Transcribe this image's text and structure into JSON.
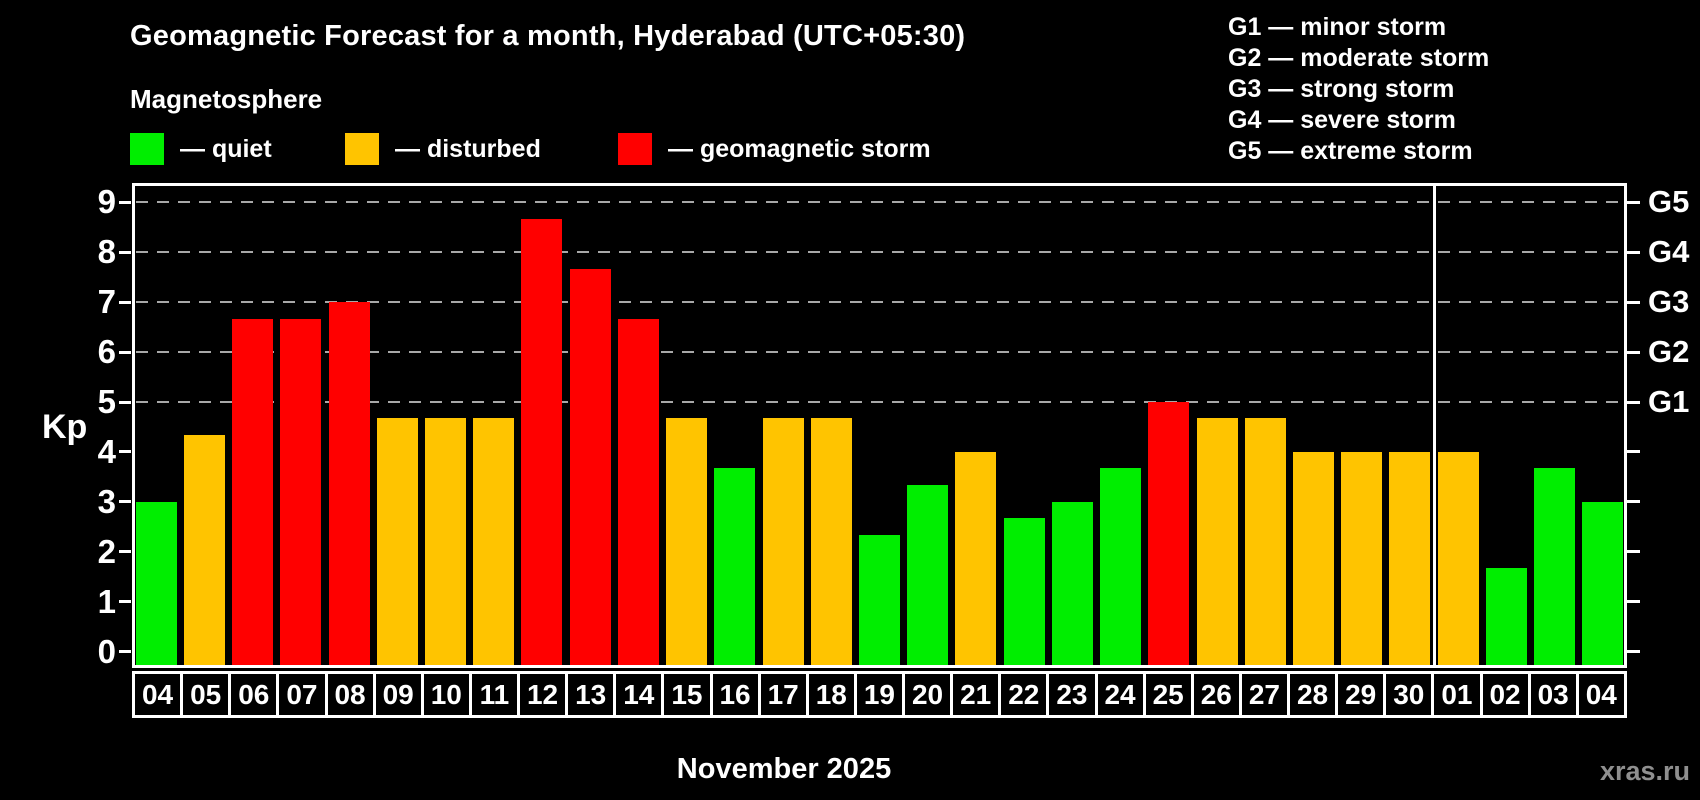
{
  "title": "Geomagnetic Forecast for a month, Hyderabad (UTC+05:30)",
  "subtitle": "Magnetosphere",
  "legend": {
    "quiet": {
      "label": "— quiet",
      "color": "#00ee00"
    },
    "disturbed": {
      "label": "— disturbed",
      "color": "#ffc400"
    },
    "storm": {
      "label": "— geomagnetic storm",
      "color": "#ff0000"
    }
  },
  "storm_scale_legend": [
    "G1 — minor storm",
    "G2 — moderate storm",
    "G3 — strong storm",
    "G4 — severe storm",
    "G5 — extreme storm"
  ],
  "y_axis": {
    "label": "Kp",
    "ticks": [
      0,
      1,
      2,
      3,
      4,
      5,
      6,
      7,
      8,
      9
    ],
    "right_axis_labels": [
      {
        "kp": 5,
        "text": "G1"
      },
      {
        "kp": 6,
        "text": "G2"
      },
      {
        "kp": 7,
        "text": "G3"
      },
      {
        "kp": 8,
        "text": "G4"
      },
      {
        "kp": 9,
        "text": "G5"
      }
    ]
  },
  "x_axis": {
    "month_label": "November 2025"
  },
  "watermark": "xras.ru",
  "chart_data": {
    "type": "bar",
    "title": "Geomagnetic Forecast for a month, Hyderabad (UTC+05:30)",
    "ylabel": "Kp",
    "ylim": [
      0,
      9.33
    ],
    "gridlines_at": [
      5,
      6,
      7,
      8,
      9
    ],
    "month_boundary_after_category_index": 26,
    "categories": [
      "04",
      "05",
      "06",
      "07",
      "08",
      "09",
      "10",
      "11",
      "12",
      "13",
      "14",
      "15",
      "16",
      "17",
      "18",
      "19",
      "20",
      "21",
      "22",
      "23",
      "24",
      "25",
      "26",
      "27",
      "28",
      "29",
      "30",
      "01",
      "02",
      "03",
      "04"
    ],
    "values": [
      3,
      4.33,
      6.67,
      6.67,
      7,
      4.67,
      4.67,
      4.67,
      8.67,
      7.67,
      6.67,
      4.67,
      3.67,
      4.67,
      4.67,
      2.33,
      3.33,
      4,
      2.67,
      3,
      3.67,
      5,
      4.67,
      4.67,
      4,
      4,
      4,
      4,
      1.67,
      3.67,
      3
    ],
    "levels": [
      "quiet",
      "disturbed",
      "storm",
      "storm",
      "storm",
      "disturbed",
      "disturbed",
      "disturbed",
      "storm",
      "storm",
      "storm",
      "disturbed",
      "quiet",
      "disturbed",
      "disturbed",
      "quiet",
      "quiet",
      "disturbed",
      "quiet",
      "quiet",
      "quiet",
      "storm",
      "disturbed",
      "disturbed",
      "disturbed",
      "disturbed",
      "disturbed",
      "disturbed",
      "quiet",
      "quiet",
      "quiet"
    ]
  }
}
